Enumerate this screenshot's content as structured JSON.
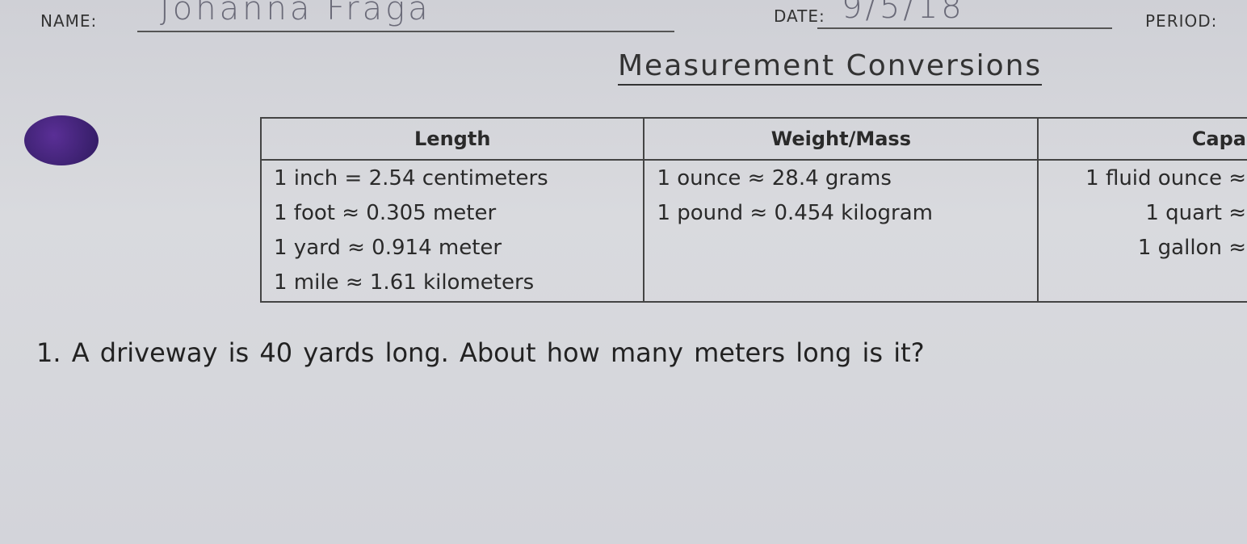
{
  "header": {
    "name_label": "NAME:",
    "name_value": "Johanna Fraga",
    "date_label": "DATE:",
    "date_value": "9/5/18",
    "period_label": "PERIOD:"
  },
  "title": "Measurement Conversions",
  "table": {
    "columns": [
      "Length",
      "Weight/Mass",
      "Capa"
    ],
    "length": [
      "1 inch = 2.54 centimeters",
      "1 foot ≈ 0.305 meter",
      "1 yard ≈ 0.914 meter",
      "1 mile ≈ 1.61 kilometers"
    ],
    "weight": [
      "1 ounce ≈ 28.4 grams",
      "1 pound ≈ 0.454 kilogram"
    ],
    "capacity": [
      "1 fluid ounce ≈",
      "1 quart ≈",
      "1 gallon ≈"
    ]
  },
  "question": "1.  A driveway is 40 yards long.  About how many meters long is it?"
}
